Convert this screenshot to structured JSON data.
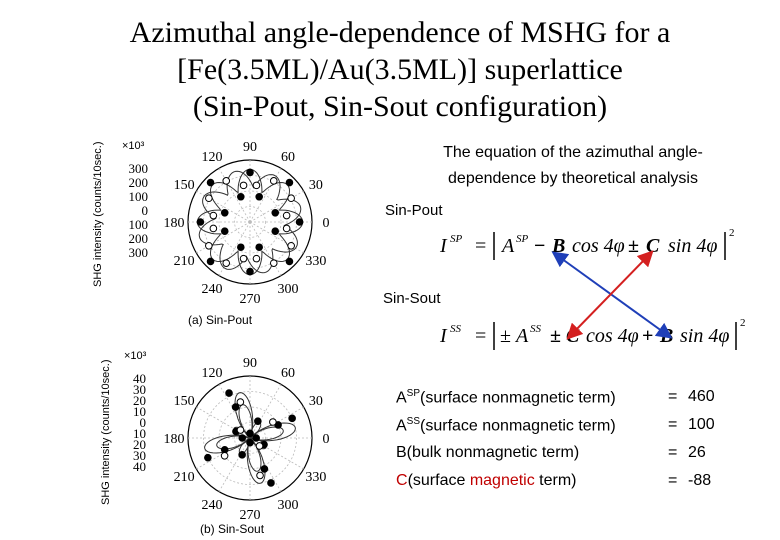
{
  "title": {
    "line1": "Azimuthal angle-dependence of MSHG for a",
    "line2": "[Fe(3.5ML)/Au(3.5ML)] superlattice",
    "line3": "(Sin-Pout, Sin-Sout configuration)"
  },
  "description": {
    "line1": "The equation of the azimuthal angle-",
    "line2": "dependence by theoretical analysis"
  },
  "colors": {
    "magnetic": "#c00000",
    "arrow_blue": "#1f3fb8",
    "arrow_red": "#d42020"
  },
  "chart_data": [
    {
      "type": "scatter",
      "subtype": "polar",
      "caption": "(a) Sin-Pout",
      "ylabel": "SHG intensity (counts/10sec.)",
      "multiplier": "×10³",
      "radial_ticks": [
        "300",
        "200",
        "100",
        "0",
        "100",
        "200",
        "300"
      ],
      "angle_labels": [
        "0",
        "30",
        "60",
        "90",
        "120",
        "150",
        "180",
        "210",
        "240",
        "270",
        "300",
        "330"
      ],
      "rmax": 300,
      "series": [
        {
          "marker": "filled",
          "points": [
            [
              0,
              240
            ],
            [
              20,
              130
            ],
            [
              45,
              270
            ],
            [
              70,
              130
            ],
            [
              90,
              240
            ],
            [
              110,
              130
            ],
            [
              135,
              270
            ],
            [
              160,
              130
            ],
            [
              180,
              240
            ],
            [
              200,
              130
            ],
            [
              225,
              270
            ],
            [
              250,
              130
            ],
            [
              270,
              240
            ],
            [
              290,
              130
            ],
            [
              315,
              270
            ],
            [
              340,
              130
            ]
          ]
        },
        {
          "marker": "open",
          "points": [
            [
              10,
              180
            ],
            [
              30,
              230
            ],
            [
              60,
              230
            ],
            [
              80,
              180
            ],
            [
              100,
              180
            ],
            [
              120,
              230
            ],
            [
              150,
              230
            ],
            [
              170,
              180
            ],
            [
              190,
              180
            ],
            [
              210,
              230
            ],
            [
              240,
              230
            ],
            [
              260,
              180
            ],
            [
              280,
              180
            ],
            [
              300,
              230
            ],
            [
              330,
              230
            ],
            [
              350,
              180
            ]
          ]
        }
      ]
    },
    {
      "type": "scatter",
      "subtype": "polar",
      "caption": "(b) Sin-Sout",
      "ylabel": "SHG intensity (counts/10sec.)",
      "multiplier": "×10³",
      "radial_ticks": [
        "40",
        "30",
        "20",
        "10",
        "0",
        "10",
        "20",
        "30",
        "40"
      ],
      "angle_labels": [
        "0",
        "30",
        "60",
        "90",
        "120",
        "150",
        "180",
        "210",
        "240",
        "270",
        "300",
        "330"
      ],
      "rmax": 40,
      "series": [
        {
          "marker": "filled",
          "points": [
            [
              25,
              30
            ],
            [
              25,
              20
            ],
            [
              65,
              12
            ],
            [
              115,
              32
            ],
            [
              115,
              22
            ],
            [
              155,
              10
            ],
            [
              205,
              30
            ],
            [
              205,
              18
            ],
            [
              245,
              12
            ],
            [
              295,
              32
            ],
            [
              295,
              22
            ],
            [
              335,
              10
            ],
            [
              0,
              4
            ],
            [
              90,
              3
            ],
            [
              180,
              5
            ],
            [
              270,
              3
            ]
          ]
        },
        {
          "marker": "open",
          "points": [
            [
              35,
              18
            ],
            [
              105,
              24
            ],
            [
              140,
              8
            ],
            [
              215,
              20
            ],
            [
              285,
              25
            ],
            [
              320,
              8
            ]
          ]
        }
      ]
    }
  ],
  "equations": {
    "sp_label": "Sin-Pout",
    "ss_label": "Sin-Sout",
    "sp_lhs": "I",
    "sp_lhs_sup": "SP",
    "sp_a": "A",
    "sp_a_sup": "SP",
    "sp_sign1": "−",
    "sp_b": "B",
    "sp_cos": "cos 4φ",
    "sp_sign2": "±",
    "sp_c": "C",
    "sp_sin": "sin 4φ",
    "ss_lhs": "I",
    "ss_lhs_sup": "SS",
    "ss_sign0": "±",
    "ss_a": "A",
    "ss_a_sup": "SS",
    "ss_sign1": "±",
    "ss_c": "C",
    "ss_cos": "cos 4φ",
    "ss_sign2": "+",
    "ss_b": "B",
    "ss_sin": "sin 4φ",
    "power": "2"
  },
  "parameters": [
    {
      "symbol": "A",
      "sup": "SP",
      "desc": "(surface nonmagnetic term)",
      "eq": "=",
      "value": "460"
    },
    {
      "symbol": "A",
      "sup": "SS",
      "desc": "(surface nonmagnetic term)",
      "eq": "=",
      "value": "100"
    },
    {
      "symbol": "B",
      "sup": "",
      "desc": "(bulk nonmagnetic term)",
      "eq": "=",
      "value": "26"
    },
    {
      "symbol": "C",
      "sup": "",
      "desc_pre": "(surface ",
      "desc_mag": "magnetic",
      "desc_post": " term)",
      "eq": "=",
      "value": "-88"
    }
  ]
}
